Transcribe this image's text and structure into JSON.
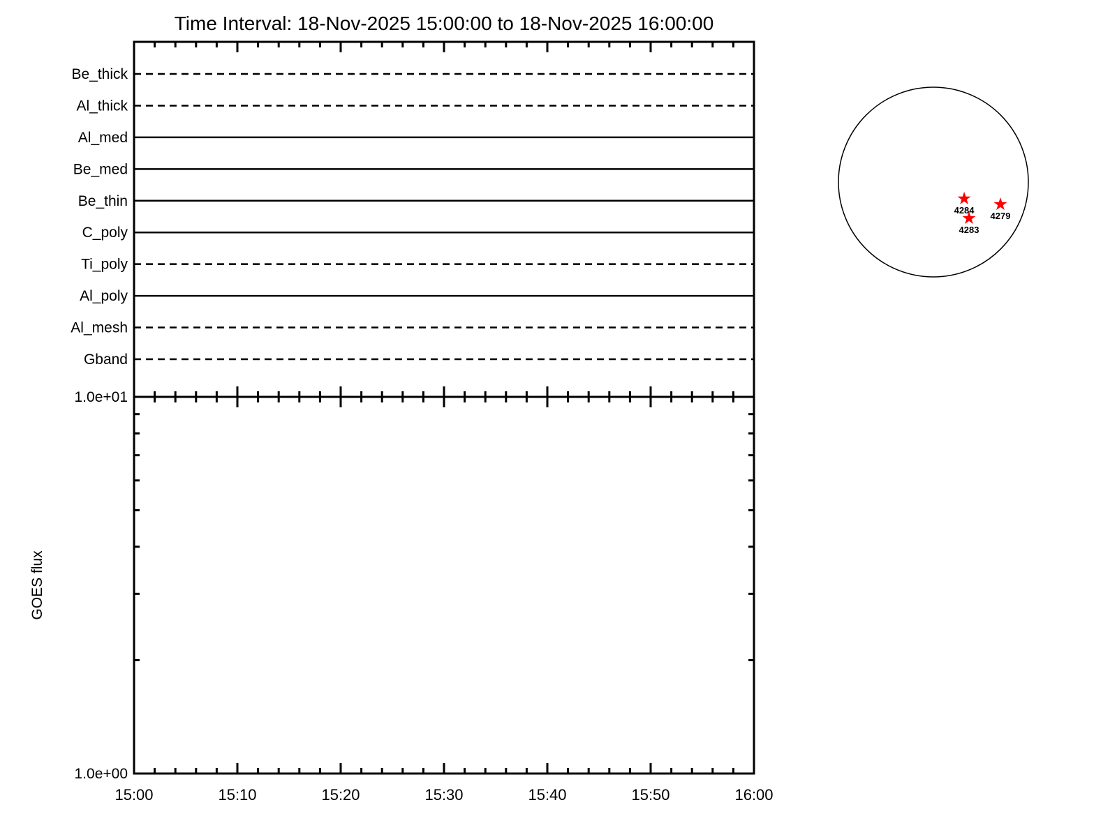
{
  "title": "Time Interval: 18-Nov-2025 15:00:00 to 18-Nov-2025 16:00:00",
  "chart_data": [
    {
      "type": "line",
      "panel": "xrt_filter_timeline",
      "x_axis": {
        "start": "15:00",
        "end": "16:00",
        "duration_minutes": 60,
        "major_tick_minutes": 10,
        "minor_tick_minutes": 2
      },
      "grid": false,
      "legend": "none",
      "series": [
        {
          "name": "Be_thick",
          "linestyle": "dashed",
          "x_minutes": [
            0,
            60
          ]
        },
        {
          "name": "Al_thick",
          "linestyle": "dashed",
          "x_minutes": [
            0,
            60
          ]
        },
        {
          "name": "Al_med",
          "linestyle": "solid",
          "x_minutes": [
            0,
            60
          ]
        },
        {
          "name": "Be_med",
          "linestyle": "solid",
          "x_minutes": [
            0,
            60
          ]
        },
        {
          "name": "Be_thin",
          "linestyle": "solid",
          "x_minutes": [
            0,
            60
          ]
        },
        {
          "name": "C_poly",
          "linestyle": "solid",
          "x_minutes": [
            0,
            60
          ]
        },
        {
          "name": "Ti_poly",
          "linestyle": "dashed",
          "x_minutes": [
            0,
            60
          ]
        },
        {
          "name": "Al_poly",
          "linestyle": "solid",
          "x_minutes": [
            0,
            60
          ]
        },
        {
          "name": "Al_mesh",
          "linestyle": "dashed",
          "x_minutes": [
            0,
            60
          ]
        },
        {
          "name": "Gband",
          "linestyle": "dashed",
          "x_minutes": [
            0,
            60
          ]
        }
      ]
    },
    {
      "type": "line",
      "panel": "goes_flux",
      "ylabel": "GOES flux",
      "yscale": "log",
      "ylim": [
        1,
        10
      ],
      "ytick_labels": [
        "1.0e+00",
        "1.0e+01"
      ],
      "y_minor_ticks": [
        2,
        3,
        4,
        5,
        6,
        7,
        8,
        9
      ],
      "xtick_labels": [
        "15:00",
        "15:10",
        "15:20",
        "15:30",
        "15:40",
        "15:50",
        "16:00"
      ],
      "series": []
    }
  ],
  "sun_map": {
    "marker_color": "#ff0000",
    "active_regions": [
      {
        "label": "4284",
        "disk_x": 0.324,
        "disk_y": 0.176
      },
      {
        "label": "4283",
        "disk_x": 0.375,
        "disk_y": 0.382
      },
      {
        "label": "4279",
        "disk_x": 0.706,
        "disk_y": 0.235
      }
    ]
  }
}
